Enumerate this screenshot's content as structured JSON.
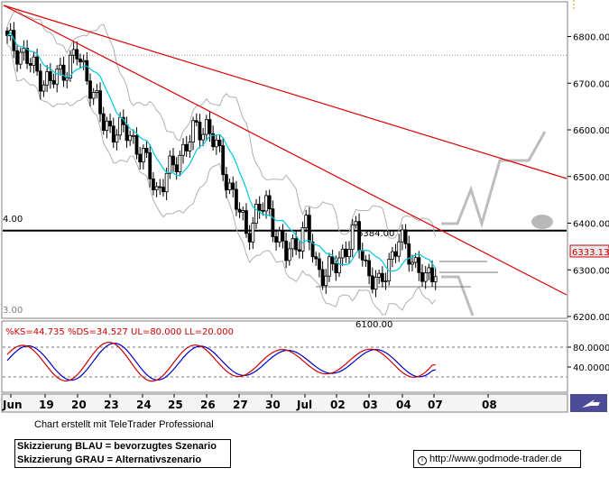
{
  "chart_data": {
    "type": "candlestick",
    "price_ticks": [
      "6800.00",
      "6700.00",
      "6600.00",
      "6500.00",
      "6400.00",
      "6300.00",
      "6200.00"
    ],
    "price_range": [
      6187,
      6860
    ],
    "last_price_label": "6333.13",
    "resistance": {
      "value": 6384,
      "label": "6384.00"
    },
    "support_label_fragment": "6100.00",
    "left_clipped_labels": [
      "4.00",
      "3.00"
    ],
    "date_labels": [
      "Jun",
      "19",
      "20",
      "23",
      "24",
      "25",
      "26",
      "27",
      "30",
      "Jul",
      "02",
      "03",
      "04",
      "07",
      "08"
    ],
    "oscillator": {
      "header": "%KS=44.735 %DS=34.527 UL=80.000 LL=20.000",
      "ks": 44.735,
      "ds": 34.527,
      "upper_limit": 80,
      "lower_limit": 20,
      "ticks": [
        "80.0000",
        "40.0000"
      ],
      "range": [
        0,
        100
      ]
    },
    "scenarios": {
      "blue": "preferred",
      "grey": "alternative"
    }
  },
  "footer": {
    "credit": "Chart erstellt mit TeleTrader Professional",
    "legend_line1": "Skizzierung BLAU = bevorzugtes Szenario",
    "legend_line2": "Skizzierung GRAU = Alternativszenario",
    "url": "http://www.godmode-trader.de"
  },
  "colors": {
    "trendline": "#dd0000",
    "ma": "#00c8e0",
    "band": "#b0b0b0",
    "stoch_k": "#cc0000",
    "stoch_d": "#0000cc",
    "scenario": "#bdbdbd"
  },
  "icons": [
    "compass-icon",
    "info-icon"
  ]
}
